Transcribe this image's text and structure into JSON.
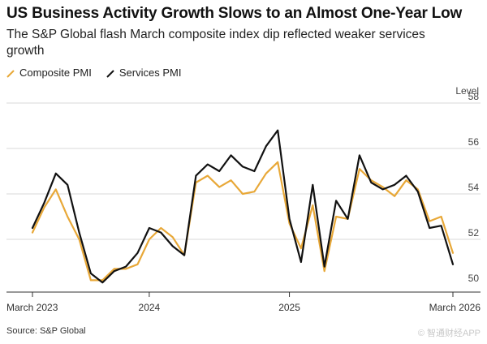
{
  "title": "US Business Activity Growth Slows to an Almost One-Year Low",
  "subtitle": "The S&P Global flash March composite index dip reflected weaker services growth",
  "source": "Source: S&P Global",
  "watermark": "© 智通财经APP",
  "colors": {
    "composite": "#e8a838",
    "services": "#111111",
    "grid": "#d9d9d9"
  },
  "chart_data": {
    "type": "line",
    "ylabel": "Level",
    "ylim": [
      50,
      58
    ],
    "yticks": [
      50,
      52,
      54,
      56,
      58
    ],
    "x": [
      "2023-03",
      "2023-04",
      "2023-05",
      "2023-06",
      "2023-07",
      "2023-08",
      "2023-09",
      "2023-10",
      "2023-11",
      "2023-12",
      "2024-01",
      "2024-02",
      "2024-03",
      "2024-04",
      "2024-05",
      "2024-06",
      "2024-07",
      "2024-08",
      "2024-09",
      "2024-10",
      "2024-11",
      "2024-12",
      "2025-01",
      "2025-02",
      "2025-03",
      "2025-04",
      "2025-05",
      "2025-06",
      "2025-07",
      "2025-08",
      "2025-09",
      "2025-10",
      "2025-11",
      "2025-12",
      "2026-01",
      "2026-02",
      "2026-03"
    ],
    "xticks": [
      {
        "index": 0,
        "label": "March 2023"
      },
      {
        "index": 10,
        "label": "2024"
      },
      {
        "index": 22,
        "label": "2025"
      },
      {
        "index": 36,
        "label": "March 2026"
      }
    ],
    "series": [
      {
        "name": "Composite PMI",
        "values": [
          52.3,
          53.4,
          54.2,
          53.0,
          52.0,
          50.2,
          50.2,
          50.7,
          50.7,
          50.9,
          52.0,
          52.5,
          52.1,
          51.3,
          54.5,
          54.8,
          54.3,
          54.6,
          54.0,
          54.1,
          54.9,
          55.4,
          52.7,
          51.6,
          53.5,
          50.6,
          53.0,
          52.9,
          55.1,
          54.6,
          54.3,
          53.9,
          54.6,
          54.2,
          52.8,
          53.0,
          51.4
        ]
      },
      {
        "name": "Services PMI",
        "values": [
          52.5,
          53.6,
          54.9,
          54.4,
          52.3,
          50.5,
          50.1,
          50.6,
          50.8,
          51.4,
          52.5,
          52.3,
          51.7,
          51.3,
          54.8,
          55.3,
          55.0,
          55.7,
          55.2,
          55.0,
          56.1,
          56.8,
          52.9,
          51.0,
          54.4,
          50.8,
          53.7,
          52.9,
          55.7,
          54.5,
          54.2,
          54.4,
          54.8,
          54.1,
          52.5,
          52.6,
          50.9
        ]
      }
    ]
  }
}
